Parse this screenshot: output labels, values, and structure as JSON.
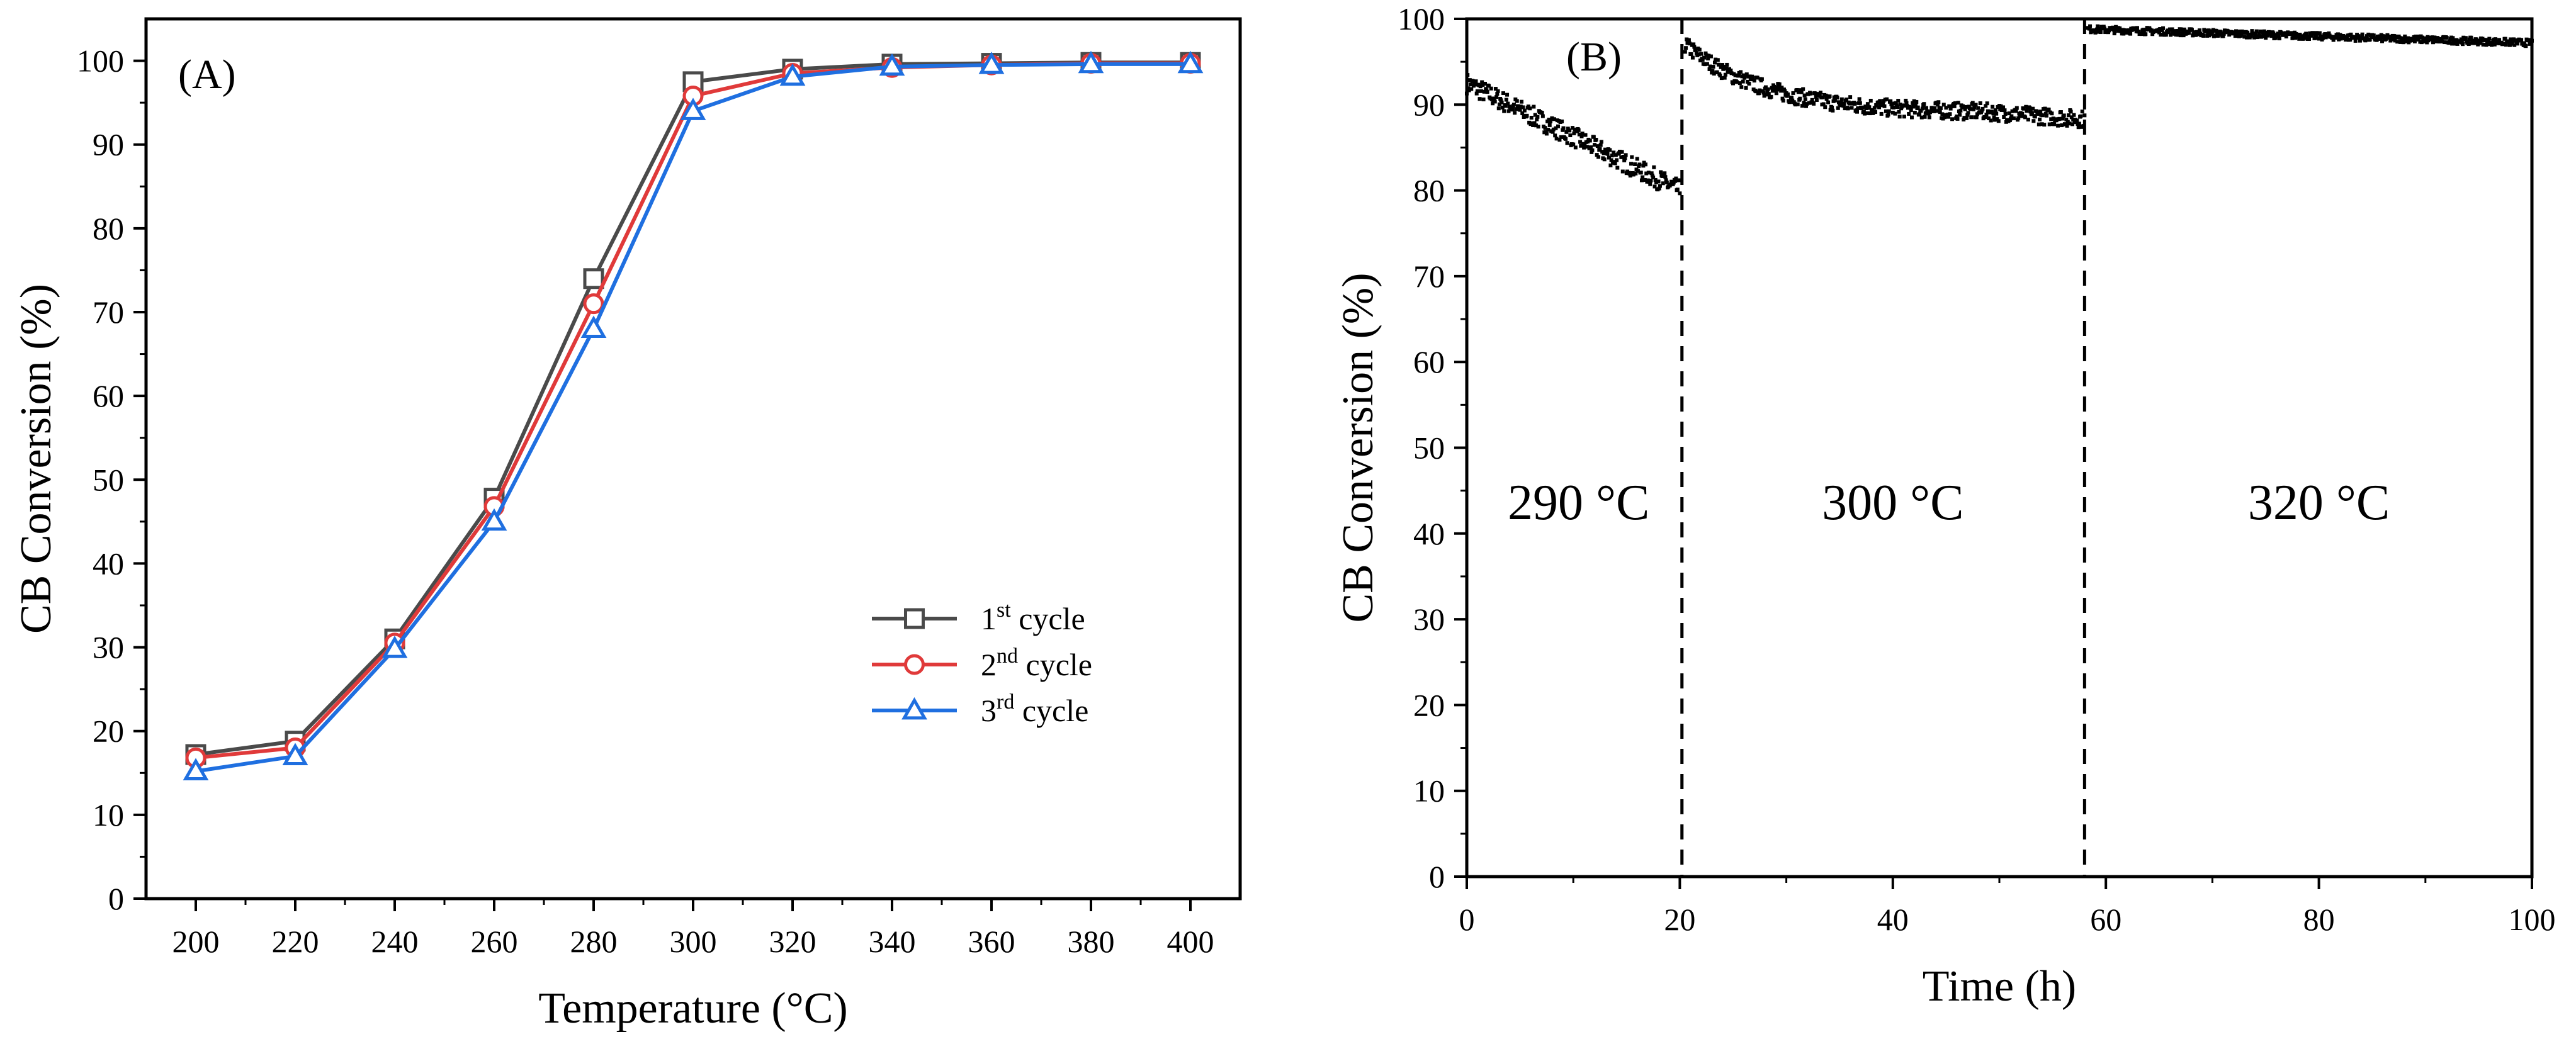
{
  "chart_data": [
    {
      "type": "line",
      "panel_label": "(A)",
      "xlabel": "Temperature (°C)",
      "ylabel": "CB Conversion (%)",
      "xlim": [
        190,
        410
      ],
      "ylim": [
        0,
        105
      ],
      "xticks": [
        200,
        220,
        240,
        260,
        280,
        300,
        320,
        340,
        360,
        380,
        400
      ],
      "yticks": [
        0,
        10,
        20,
        30,
        40,
        50,
        60,
        70,
        80,
        90,
        100
      ],
      "x": [
        200,
        220,
        240,
        260,
        280,
        300,
        320,
        340,
        360,
        380,
        400
      ],
      "legend_position": "center-right",
      "series": [
        {
          "name": "1st cycle",
          "ordinal": "1",
          "sup": "st",
          "suffix": " cycle",
          "marker": "square",
          "color": "#4a4a4a",
          "values": [
            17.2,
            18.8,
            31,
            47.8,
            74,
            97.5,
            99,
            99.6,
            99.7,
            99.8,
            99.8
          ]
        },
        {
          "name": "2nd cycle",
          "ordinal": "2",
          "sup": "nd",
          "suffix": " cycle",
          "marker": "circle",
          "color": "#e03a3a",
          "values": [
            16.8,
            18,
            30.5,
            46.8,
            71,
            95.8,
            98.5,
            99.2,
            99.5,
            99.7,
            99.7
          ]
        },
        {
          "name": "3rd cycle",
          "ordinal": "3",
          "sup": "rd",
          "suffix": " cycle",
          "marker": "triangle",
          "color": "#1f6fe0",
          "values": [
            15.2,
            17,
            29.8,
            45,
            68,
            94,
            98.1,
            99.3,
            99.5,
            99.6,
            99.6
          ]
        }
      ]
    },
    {
      "type": "scatter",
      "panel_label": "(B)",
      "xlabel": "Time (h)",
      "ylabel": "CB Conversion (%)",
      "xlim": [
        0,
        100
      ],
      "ylim": [
        0,
        100
      ],
      "xticks": [
        0,
        20,
        40,
        60,
        80,
        100
      ],
      "yticks": [
        0,
        10,
        20,
        30,
        40,
        50,
        60,
        70,
        80,
        90,
        100
      ],
      "color": "#000000",
      "dividers": [
        20.2,
        58
      ],
      "regions": [
        {
          "label": "290 °C",
          "x_center": 10.5
        },
        {
          "label": "300 °C",
          "x_center": 40
        },
        {
          "label": "320 °C",
          "x_center": 80
        }
      ],
      "segments": [
        {
          "x_start": 0,
          "x_end": 20,
          "y_start": 92.5,
          "y_end": 80,
          "noise": 1.2
        },
        {
          "x_start": 20.5,
          "x_end": 58,
          "y_start": 97,
          "y_end": 87.5,
          "shape": "decay",
          "plateau": 89,
          "noise": 1.0
        },
        {
          "x_start": 58.3,
          "x_end": 100,
          "y_start": 98.8,
          "y_end": 97.2,
          "noise": 0.4
        }
      ]
    }
  ]
}
